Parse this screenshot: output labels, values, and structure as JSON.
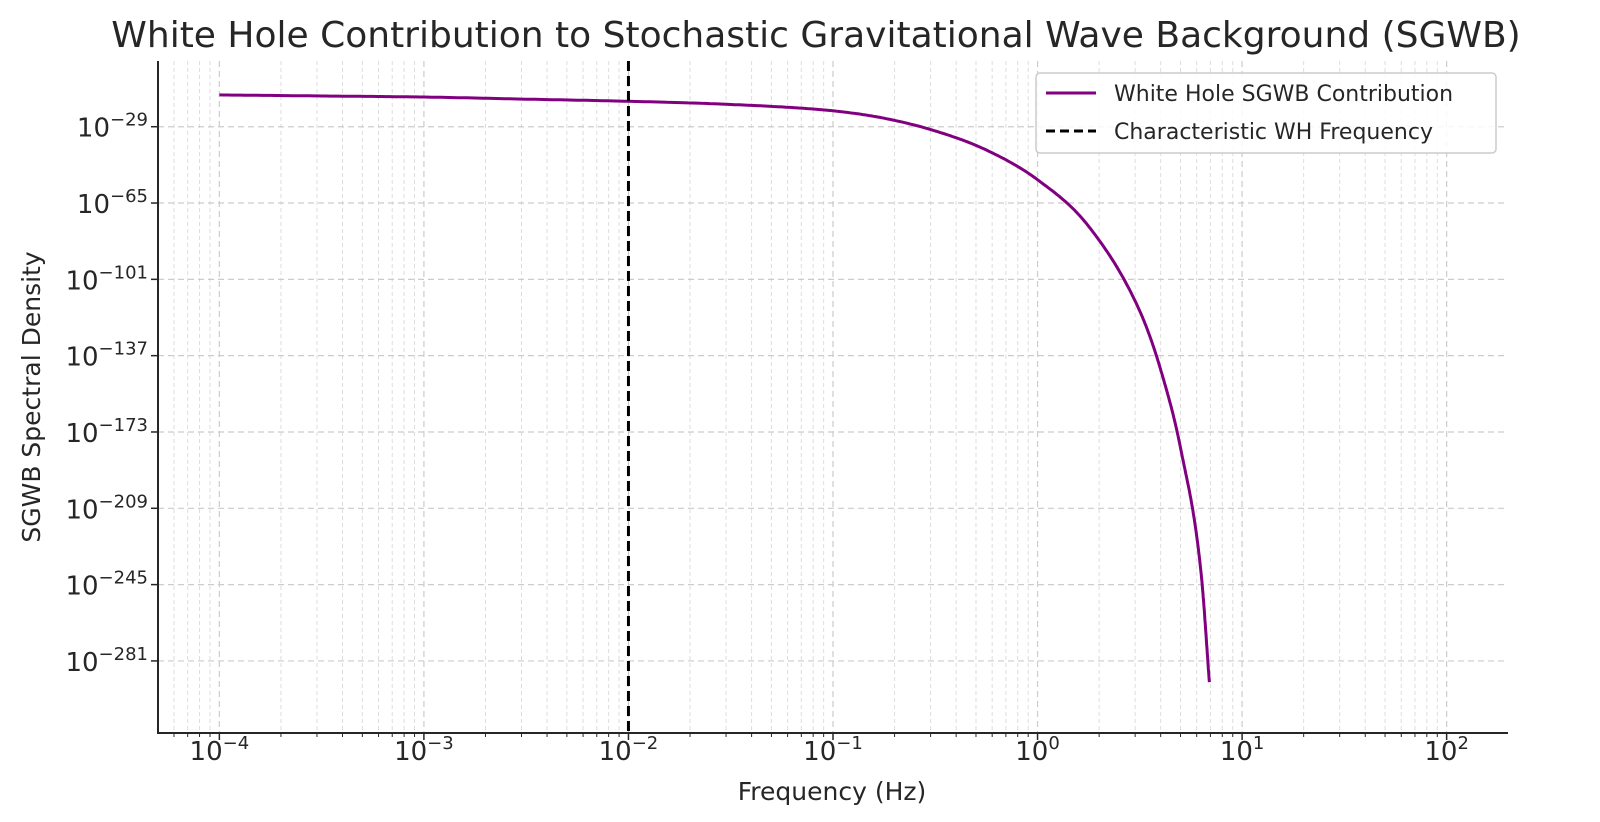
{
  "chart_data": {
    "type": "line",
    "title": "White Hole Contribution to Stochastic Gravitational Wave Background (SGWB)",
    "xlabel": "Frequency (Hz)",
    "ylabel": "SGWB Spectral Density",
    "xscale": "log",
    "yscale": "log",
    "xlim_log10": [
      -4.3,
      2.3
    ],
    "ylim_log10": [
      -315,
      2
    ],
    "grid": true,
    "legend_position": "top-right",
    "x_ticks": [
      {
        "base": "10",
        "exp": "−4"
      },
      {
        "base": "10",
        "exp": "−3"
      },
      {
        "base": "10",
        "exp": "−2"
      },
      {
        "base": "10",
        "exp": "−1"
      },
      {
        "base": "10",
        "exp": "0"
      },
      {
        "base": "10",
        "exp": "1"
      },
      {
        "base": "10",
        "exp": "2"
      }
    ],
    "x_tick_values_log10": [
      -4,
      -3,
      -2,
      -1,
      0,
      1,
      2
    ],
    "y_ticks": [
      {
        "base": "10",
        "exp": "−29"
      },
      {
        "base": "10",
        "exp": "−65"
      },
      {
        "base": "10",
        "exp": "−101"
      },
      {
        "base": "10",
        "exp": "−137"
      },
      {
        "base": "10",
        "exp": "−173"
      },
      {
        "base": "10",
        "exp": "−209"
      },
      {
        "base": "10",
        "exp": "−245"
      },
      {
        "base": "10",
        "exp": "−281"
      }
    ],
    "y_tick_values_log10": [
      -29,
      -65,
      -101,
      -137,
      -173,
      -209,
      -245,
      -281
    ],
    "series": [
      {
        "name": "White Hole SGWB Contribution",
        "color": "#800080",
        "style": "solid",
        "points_log10": [
          [
            -4,
            -14
          ],
          [
            -3.5,
            -14.5
          ],
          [
            -3,
            -15
          ],
          [
            -2.5,
            -16
          ],
          [
            -2,
            -17
          ],
          [
            -1.5,
            -18.5
          ],
          [
            -1,
            -21.5
          ],
          [
            -0.75,
            -25
          ],
          [
            -0.5,
            -31
          ],
          [
            -0.25,
            -40
          ],
          [
            0,
            -54
          ],
          [
            0.25,
            -76
          ],
          [
            0.5,
            -116
          ],
          [
            0.6,
            -143
          ],
          [
            0.7,
            -181
          ],
          [
            0.8,
            -240
          ],
          [
            0.84,
            -291
          ]
        ]
      },
      {
        "name": "Characteristic WH Frequency",
        "color": "#000000",
        "style": "dashed",
        "x_log10": -2
      }
    ]
  }
}
